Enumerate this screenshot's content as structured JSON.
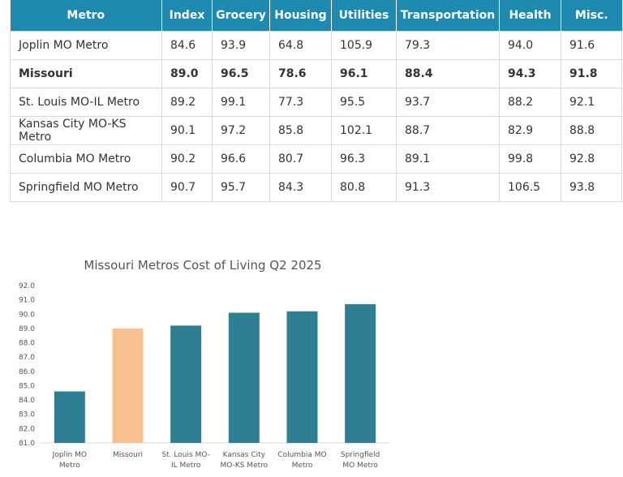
{
  "table": {
    "headers": [
      "Metro",
      "Index",
      "Grocery",
      "Housing",
      "Utilities",
      "Transportation",
      "Health",
      "Misc."
    ],
    "rows": [
      {
        "cells": [
          "Joplin MO Metro",
          "84.6",
          "93.9",
          "64.8",
          "105.9",
          "79.3",
          "94.0",
          "91.6"
        ],
        "bold": false
      },
      {
        "cells": [
          "Missouri",
          "89.0",
          "96.5",
          "78.6",
          "96.1",
          "88.4",
          "94.3",
          "91.8"
        ],
        "bold": true
      },
      {
        "cells": [
          "St. Louis MO-IL Metro",
          "89.2",
          "99.1",
          "77.3",
          "95.5",
          "93.7",
          "88.2",
          "92.1"
        ],
        "bold": false
      },
      {
        "cells": [
          "Kansas City MO-KS Metro",
          "90.1",
          "97.2",
          "85.8",
          "102.1",
          "88.7",
          "82.9",
          "88.8"
        ],
        "bold": false
      },
      {
        "cells": [
          "Columbia MO Metro",
          "90.2",
          "96.6",
          "80.7",
          "96.3",
          "89.1",
          "99.8",
          "92.8"
        ],
        "bold": false
      },
      {
        "cells": [
          "Springfield MO Metro",
          "90.7",
          "95.7",
          "84.3",
          "80.8",
          "91.3",
          "106.5",
          "93.8"
        ],
        "bold": false
      }
    ]
  },
  "colors": {
    "header_bg": "#1f8ab0",
    "bar": "#2e7f94",
    "bar_highlight": "#f8c08e"
  },
  "chart_data": {
    "type": "bar",
    "title": "Missouri Metros Cost of Living Q2 2025",
    "categories": [
      [
        "Joplin MO",
        "Metro"
      ],
      [
        "Missouri"
      ],
      [
        "St. Louis MO-",
        "IL Metro"
      ],
      [
        "Kansas City",
        "MO-KS Metro"
      ],
      [
        "Columbia MO",
        "Metro"
      ],
      [
        "Springfield",
        "MO Metro"
      ]
    ],
    "values": [
      84.6,
      89.0,
      89.2,
      90.1,
      90.2,
      90.7
    ],
    "highlight_index": 1,
    "ylim": [
      81.0,
      92.0
    ],
    "yticks": [
      "81.0",
      "82.0",
      "83.0",
      "84.0",
      "85.0",
      "86.0",
      "87.0",
      "88.0",
      "89.0",
      "90.0",
      "91.0",
      "92.0"
    ],
    "grid": false,
    "legend": "none"
  }
}
